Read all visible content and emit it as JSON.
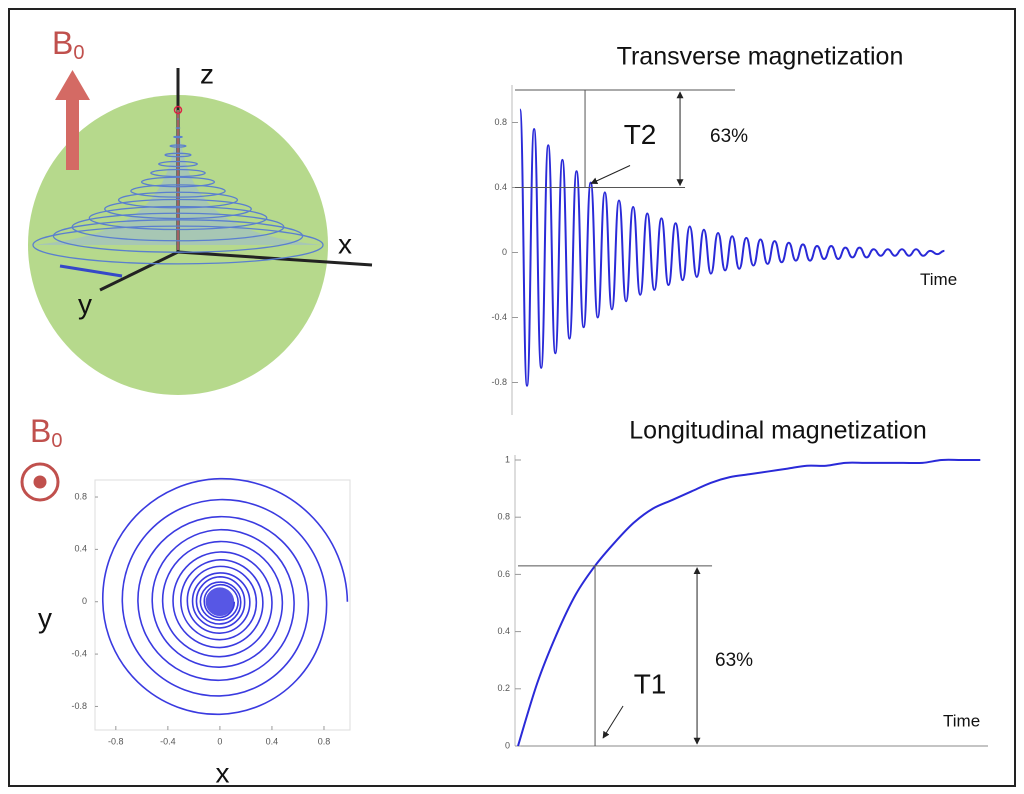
{
  "sphere_diagram": {
    "field_label": "B",
    "field_subscript": "0",
    "axis_labels": {
      "z": "z",
      "x": "x",
      "y": "y"
    }
  },
  "field_symbol": {
    "label": "B",
    "subscript": "0"
  },
  "chart_data": [
    {
      "type": "spiral",
      "x_label": "x",
      "y_label": "y",
      "color": "#3a3ae0",
      "x": [
        0.98,
        0,
        -0.9,
        0,
        0.82,
        0,
        -0.75,
        0,
        0.68,
        0,
        -0.63,
        0,
        0.57,
        0,
        -0.52,
        0,
        0.48,
        0,
        -0.44,
        0,
        0.4,
        0,
        -0.36,
        0,
        0.33,
        0,
        -0.3,
        0,
        0.28,
        0,
        -0.25,
        0,
        0.23,
        0,
        -0.21,
        0,
        0.19,
        0,
        -0.18,
        0,
        0.16,
        0,
        -0.15,
        0,
        0.14,
        0,
        -0.12,
        0,
        0.11
      ],
      "values": [
        0,
        0.94,
        0,
        -0.86,
        0,
        0.78,
        0,
        -0.72,
        0,
        0.65,
        0,
        -0.6,
        0,
        0.55,
        0,
        -0.5,
        0,
        0.46,
        0,
        -0.42,
        0,
        0.38,
        0,
        -0.35,
        0,
        0.32,
        0,
        -0.29,
        0,
        0.27,
        0,
        -0.24,
        0,
        0.22,
        0,
        -0.2,
        0,
        0.19,
        0,
        -0.17,
        0,
        0.15,
        0,
        -0.14,
        0,
        0.13,
        0,
        -0.12,
        0
      ],
      "xlim": [
        -0.96,
        1
      ],
      "ylim": [
        -0.98,
        0.93
      ],
      "xticks": [
        -0.8,
        -0.4,
        0,
        0.4,
        0.8
      ],
      "yticks": [
        -0.8,
        -0.4,
        0,
        0.4,
        0.8
      ]
    },
    {
      "type": "oscillation",
      "title": "Transverse magnetization",
      "x_label": "Time",
      "color": "#2a2ad8",
      "x": [
        0,
        1,
        2,
        3,
        4,
        5,
        6,
        7,
        8,
        9,
        10,
        11,
        12,
        13,
        14,
        15,
        16,
        17,
        18,
        19,
        20,
        21,
        22,
        23,
        24,
        25,
        26,
        27,
        28,
        29,
        30,
        31,
        32,
        33,
        34,
        35,
        36,
        37,
        38,
        39,
        40,
        41,
        42,
        43,
        44,
        45,
        46,
        47,
        48,
        49,
        50,
        51,
        52,
        53,
        54,
        55,
        56,
        57,
        58,
        59,
        60
      ],
      "values": [
        0.88,
        -0.82,
        0.76,
        -0.71,
        0.66,
        -0.62,
        0.57,
        -0.53,
        0.5,
        -0.46,
        0.43,
        -0.4,
        0.37,
        -0.35,
        0.32,
        -0.3,
        0.28,
        -0.26,
        0.24,
        -0.23,
        0.21,
        -0.2,
        0.18,
        -0.17,
        0.16,
        -0.15,
        0.14,
        -0.13,
        0.12,
        -0.11,
        0.1,
        -0.1,
        0.09,
        -0.08,
        0.08,
        -0.07,
        0.07,
        -0.06,
        0.06,
        -0.05,
        0.05,
        -0.05,
        0.04,
        -0.04,
        0.04,
        -0.04,
        0.03,
        -0.03,
        0.03,
        -0.03,
        0.02,
        -0.02,
        0.02,
        -0.02,
        0.02,
        -0.02,
        0.02,
        -0.02,
        0.01,
        -0.01,
        0.01
      ],
      "xlim": [
        -0.7,
        61.5
      ],
      "ylim": [
        -1,
        1
      ],
      "yticks": [
        -0.8,
        -0.4,
        0,
        0.4,
        0.8
      ],
      "annotations": [
        {
          "text": "T2",
          "x": 9.2,
          "y": 0.4
        },
        {
          "text": "63%"
        }
      ]
    },
    {
      "type": "line",
      "title": "Longitudinal magnetization",
      "x_label": "Time",
      "color": "#2a2ad8",
      "x": [
        0,
        0.25,
        0.5,
        0.75,
        1,
        1.25,
        1.5,
        1.75,
        2,
        2.25,
        2.5,
        2.75,
        3,
        3.25,
        3.5,
        3.75,
        4,
        4.25,
        4.5,
        4.75,
        5,
        5.25,
        5.5,
        5.75,
        6
      ],
      "values": [
        0,
        0.22,
        0.39,
        0.53,
        0.63,
        0.71,
        0.78,
        0.83,
        0.86,
        0.89,
        0.92,
        0.94,
        0.95,
        0.96,
        0.97,
        0.98,
        0.98,
        0.99,
        0.99,
        0.99,
        0.99,
        0.99,
        1,
        1,
        1
      ],
      "xlim": [
        0,
        6.1
      ],
      "ylim": [
        0,
        1
      ],
      "yticks": [
        0,
        0.2,
        0.4,
        0.6,
        0.8,
        1
      ],
      "annotations": [
        {
          "text": "T1",
          "x": 1,
          "y": 0.63
        },
        {
          "text": "63%"
        }
      ]
    }
  ]
}
